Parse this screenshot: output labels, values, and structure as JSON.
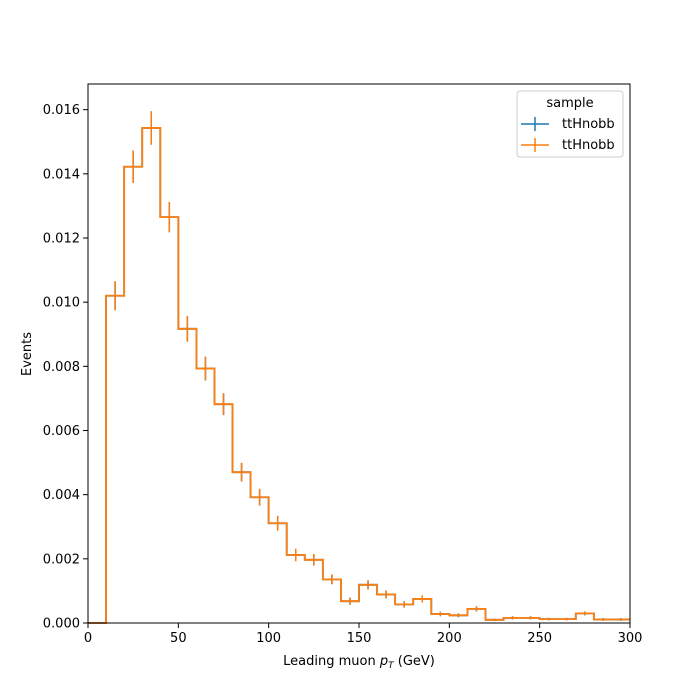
{
  "chart_data": {
    "type": "step-histogram",
    "xlabel_main": "Leading muon ",
    "xlabel_p": "p",
    "xlabel_sub": "T",
    "xlabel_unit": " (GeV)",
    "ylabel": "Events",
    "xlim": [
      0,
      300
    ],
    "ylim": [
      0,
      0.0168
    ],
    "xticks": [
      0,
      50,
      100,
      150,
      200,
      250,
      300
    ],
    "xtick_labels": [
      "0",
      "50",
      "100",
      "150",
      "200",
      "250",
      "300"
    ],
    "yticks": [
      0,
      0.002,
      0.004,
      0.006,
      0.008,
      0.01,
      0.012,
      0.014,
      0.016
    ],
    "ytick_labels": [
      "0.000",
      "0.002",
      "0.004",
      "0.006",
      "0.008",
      "0.010",
      "0.012",
      "0.014",
      "0.016"
    ],
    "grid": false,
    "legend": {
      "title": "sample",
      "placement": "top-right",
      "entries": [
        "ttHnobb",
        "ttHnobb"
      ]
    },
    "bin_edges": [
      0,
      10,
      20,
      30,
      40,
      50,
      60,
      70,
      80,
      90,
      100,
      110,
      120,
      130,
      140,
      150,
      160,
      170,
      180,
      190,
      200,
      210,
      220,
      230,
      240,
      250,
      260,
      270,
      280,
      290,
      300
    ],
    "series": [
      {
        "name": "ttHnobb",
        "color": "#1f77b4",
        "values": [
          0,
          0.0102,
          0.01422,
          0.01543,
          0.01265,
          0.00917,
          0.00793,
          0.00682,
          0.0047,
          0.00392,
          0.00311,
          0.00212,
          0.00197,
          0.00136,
          0.00068,
          0.00119,
          0.00089,
          0.00058,
          0.00075,
          0.00028,
          0.00024,
          0.00044,
          0.0001,
          0.00016,
          0.00016,
          0.00012,
          0.00012,
          0.0003,
          0.00011,
          0.00011
        ],
        "errors": [
          0,
          0.00045,
          0.0005,
          0.00052,
          0.00047,
          0.0004,
          0.00037,
          0.00034,
          0.00029,
          0.00026,
          0.00023,
          0.00019,
          0.00018,
          0.00015,
          0.00011,
          0.00014,
          0.00012,
          0.0001,
          0.00011,
          7e-05,
          6e-05,
          8e-05,
          4e-05,
          5e-05,
          5e-05,
          4e-05,
          4e-05,
          6e-05,
          4e-05,
          4e-05
        ]
      },
      {
        "name": "ttHnobb",
        "color": "#ff7f0e",
        "values": [
          0,
          0.0102,
          0.01422,
          0.01543,
          0.01265,
          0.00917,
          0.00793,
          0.00682,
          0.0047,
          0.00392,
          0.00311,
          0.00212,
          0.00197,
          0.00136,
          0.00068,
          0.00119,
          0.00089,
          0.00058,
          0.00075,
          0.00028,
          0.00024,
          0.00044,
          0.0001,
          0.00016,
          0.00016,
          0.00012,
          0.00012,
          0.0003,
          0.00011,
          0.00011
        ],
        "errors": [
          0,
          0.00045,
          0.0005,
          0.00052,
          0.00047,
          0.0004,
          0.00037,
          0.00034,
          0.00029,
          0.00026,
          0.00023,
          0.00019,
          0.00018,
          0.00015,
          0.00011,
          0.00014,
          0.00012,
          0.0001,
          0.00011,
          7e-05,
          6e-05,
          8e-05,
          4e-05,
          5e-05,
          5e-05,
          4e-05,
          4e-05,
          6e-05,
          4e-05,
          4e-05
        ]
      }
    ]
  }
}
